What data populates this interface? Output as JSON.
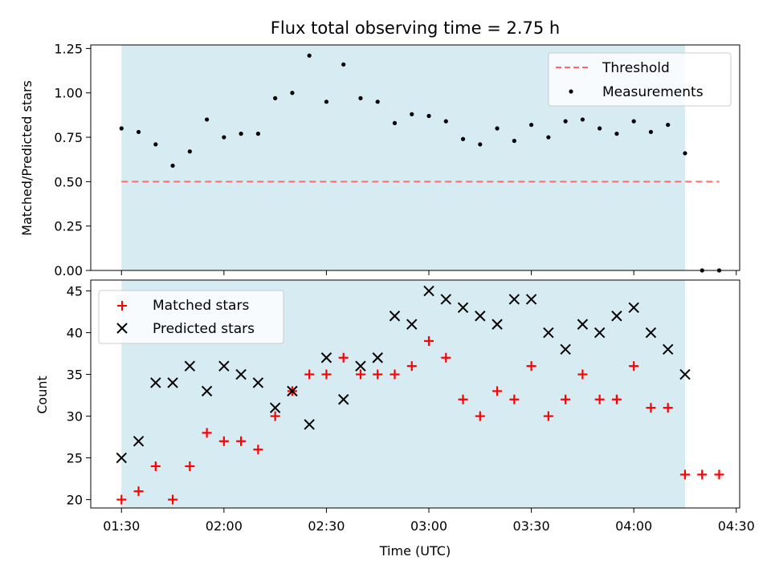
{
  "figure": {
    "title": "Flux total observing time = 2.75 h"
  },
  "colors": {
    "shade": "#add8e6",
    "threshold": "#ff6b6b",
    "measurement": "#000000",
    "matched": "#ff0000",
    "predicted": "#000000"
  },
  "chart_data": [
    {
      "type": "scatter",
      "panel": "top",
      "ylabel": "Matched/Predicted stars",
      "ylim": [
        0,
        1.27
      ],
      "yticks": [
        0,
        0.25,
        0.5,
        0.75,
        1.0,
        1.25
      ],
      "ytick_labels": [
        "0.00",
        "0.25",
        "0.50",
        "0.75",
        "1.00",
        "1.25"
      ],
      "xlim_minutes": [
        81,
        271
      ],
      "xticks_minutes": [
        90,
        120,
        150,
        180,
        210,
        240,
        270
      ],
      "shaded_span_minutes": [
        90,
        255
      ],
      "legend": {
        "position": "top-right",
        "entries": [
          "Threshold",
          "Measurements"
        ]
      },
      "threshold": {
        "name": "Threshold",
        "value": 0.5,
        "x_range_minutes": [
          90,
          265
        ]
      },
      "series": [
        {
          "name": "Measurements",
          "x_minutes": [
            90,
            95,
            100,
            105,
            110,
            115,
            120,
            125,
            130,
            135,
            140,
            145,
            150,
            155,
            160,
            165,
            170,
            175,
            180,
            185,
            190,
            195,
            200,
            205,
            210,
            215,
            220,
            225,
            230,
            235,
            240,
            245,
            250,
            255,
            260,
            265
          ],
          "values": [
            0.8,
            0.78,
            0.71,
            0.59,
            0.67,
            0.85,
            0.75,
            0.77,
            0.77,
            0.97,
            1.0,
            1.21,
            0.95,
            1.16,
            0.97,
            0.95,
            0.83,
            0.88,
            0.87,
            0.84,
            0.74,
            0.71,
            0.8,
            0.73,
            0.82,
            0.75,
            0.84,
            0.85,
            0.8,
            0.77,
            0.84,
            0.78,
            0.82,
            0.66,
            0.0,
            0.0
          ]
        }
      ]
    },
    {
      "type": "scatter",
      "panel": "bottom",
      "xlabel": "Time (UTC)",
      "ylabel": "Count",
      "ylim": [
        19,
        46.3
      ],
      "yticks": [
        20,
        25,
        30,
        35,
        40,
        45
      ],
      "ytick_labels": [
        "20",
        "25",
        "30",
        "35",
        "40",
        "45"
      ],
      "xlim_minutes": [
        81,
        271
      ],
      "xticks_minutes": [
        90,
        120,
        150,
        180,
        210,
        240,
        270
      ],
      "xtick_labels": [
        "01:30",
        "02:00",
        "02:30",
        "03:00",
        "03:30",
        "04:00",
        "04:30"
      ],
      "shaded_span_minutes": [
        90,
        255
      ],
      "legend": {
        "position": "top-left",
        "entries": [
          "Matched stars",
          "Predicted stars"
        ]
      },
      "series": [
        {
          "name": "Matched stars",
          "marker": "plus",
          "x_minutes": [
            90,
            95,
            100,
            105,
            110,
            115,
            120,
            125,
            130,
            135,
            140,
            145,
            150,
            155,
            160,
            165,
            170,
            175,
            180,
            185,
            190,
            195,
            200,
            205,
            210,
            215,
            220,
            225,
            230,
            235,
            240,
            245,
            250,
            255,
            260,
            265
          ],
          "values": [
            20,
            21,
            24,
            20,
            24,
            28,
            27,
            27,
            26,
            30,
            33,
            35,
            35,
            37,
            35,
            35,
            35,
            36,
            39,
            37,
            32,
            30,
            33,
            32,
            36,
            30,
            32,
            35,
            32,
            32,
            36,
            31,
            31,
            23,
            23,
            23
          ]
        },
        {
          "name": "Predicted stars",
          "marker": "x",
          "x_minutes": [
            90,
            95,
            100,
            105,
            110,
            115,
            120,
            125,
            130,
            135,
            140,
            145,
            150,
            155,
            160,
            165,
            170,
            175,
            180,
            185,
            190,
            195,
            200,
            205,
            210,
            215,
            220,
            225,
            230,
            235,
            240,
            245,
            250,
            255
          ],
          "values": [
            25,
            27,
            34,
            34,
            36,
            33,
            36,
            35,
            34,
            31,
            33,
            29,
            37,
            32,
            36,
            37,
            42,
            41,
            45,
            44,
            43,
            42,
            41,
            44,
            44,
            40,
            38,
            41,
            40,
            42,
            43,
            40,
            38,
            35
          ]
        }
      ]
    }
  ]
}
